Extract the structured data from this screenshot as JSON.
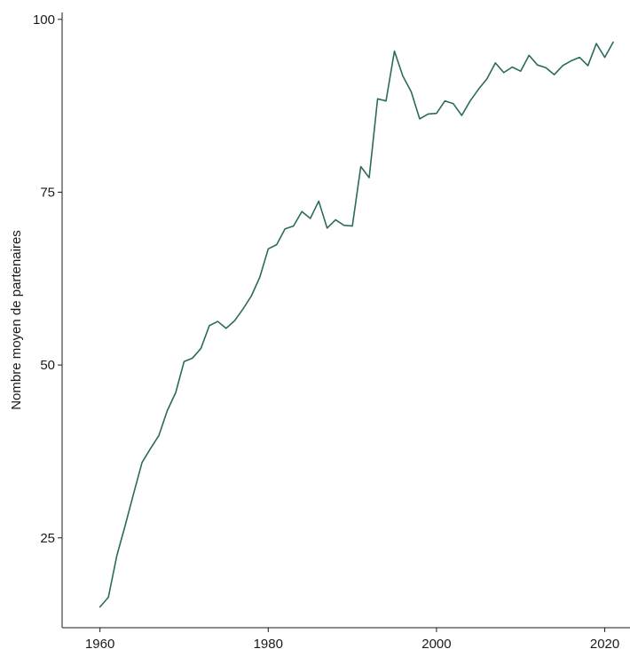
{
  "chart_data": {
    "type": "line",
    "title": "",
    "xlabel": "",
    "ylabel": "Nombre moyen de partenaires",
    "xlim": [
      1955.5,
      2023
    ],
    "ylim": [
      12,
      101
    ],
    "x_ticks": [
      1960,
      1980,
      2000,
      2020
    ],
    "y_ticks": [
      25,
      50,
      75,
      100
    ],
    "x_tick_labels": [
      "1960",
      "1980",
      "2000",
      "2020"
    ],
    "y_tick_labels": [
      "25",
      "50",
      "75",
      "100"
    ],
    "grid": false,
    "legend": "none",
    "line_color": "#2b6a5e",
    "series": [
      {
        "x": [
          1960,
          1961,
          1962,
          1963,
          1964,
          1965,
          1966,
          1967,
          1968,
          1969,
          1970,
          1971,
          1972,
          1973,
          1974,
          1975,
          1976,
          1977,
          1978,
          1979,
          1980,
          1981,
          1982,
          1983,
          1984,
          1985,
          1986,
          1987,
          1988,
          1989,
          1990,
          1991,
          1992,
          1993,
          1994,
          1995,
          1996,
          1997,
          1998,
          1999,
          2000,
          2001,
          2002,
          2003,
          2004,
          2005,
          2006,
          2007,
          2008,
          2009,
          2010,
          2011,
          2012,
          2013,
          2014,
          2015,
          2016,
          2017,
          2018,
          2019,
          2020,
          2021
        ],
        "y": [
          15.0,
          16.4,
          22.4,
          26.8,
          31.4,
          35.9,
          37.9,
          39.8,
          43.4,
          46.0,
          50.5,
          51.0,
          52.4,
          55.7,
          56.3,
          55.3,
          56.4,
          58.1,
          60.0,
          62.7,
          66.8,
          67.4,
          69.7,
          70.1,
          72.2,
          71.2,
          73.7,
          69.8,
          71.0,
          70.2,
          70.1,
          78.7,
          77.1,
          88.5,
          88.2,
          95.4,
          91.8,
          89.5,
          85.6,
          86.3,
          86.4,
          88.2,
          87.8,
          86.1,
          88.2,
          89.9,
          91.4,
          93.7,
          92.3,
          93.1,
          92.5,
          94.8,
          93.4,
          93.0,
          92.0,
          93.3,
          94.0,
          94.5,
          93.3,
          96.5,
          94.5,
          96.7
        ]
      }
    ]
  }
}
